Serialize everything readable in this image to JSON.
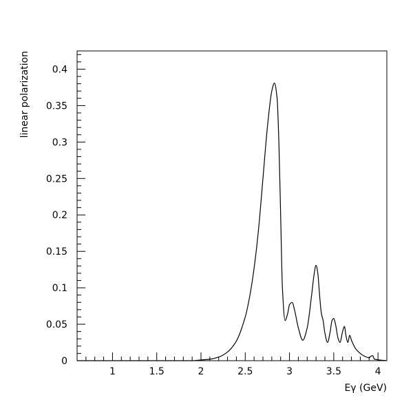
{
  "chart_data": {
    "type": "line",
    "title": "",
    "xlabel": "Eγ (GeV)",
    "ylabel": "linear polarization",
    "xlim": [
      0.6,
      4.1
    ],
    "ylim": [
      0,
      0.425
    ],
    "x_major_ticks": [
      1,
      1.5,
      2,
      2.5,
      3,
      3.5,
      4
    ],
    "x_tick_labels": [
      "1",
      "1.5",
      "2",
      "2.5",
      "3",
      "3.5",
      "4"
    ],
    "x_minor_step": 0.1,
    "y_major_ticks": [
      0,
      0.05,
      0.1,
      0.15,
      0.2,
      0.25,
      0.3,
      0.35,
      0.4
    ],
    "y_tick_labels": [
      "0",
      "0.05",
      "0.1",
      "0.15",
      "0.2",
      "0.25",
      "0.3",
      "0.35",
      "0.4"
    ],
    "y_minor_step": 0.01,
    "grid": false,
    "legend": "none",
    "colors": {
      "line": "#000000",
      "axes": "#000000",
      "background": "#ffffff"
    },
    "series": [
      {
        "x": [
          0.6,
          1.9,
          2.0,
          2.1,
          2.2,
          2.3,
          2.4,
          2.5,
          2.55,
          2.6,
          2.65,
          2.7,
          2.75,
          2.8,
          2.83,
          2.86,
          2.88,
          2.9,
          2.92,
          2.95,
          2.98,
          3.0,
          3.03,
          3.06,
          3.1,
          3.15,
          3.2,
          3.25,
          3.28,
          3.3,
          3.32,
          3.34,
          3.36,
          3.38,
          3.4,
          3.43,
          3.46,
          3.48,
          3.5,
          3.52,
          3.55,
          3.57,
          3.6,
          3.62,
          3.64,
          3.66,
          3.68,
          3.7,
          3.75,
          3.8,
          3.85,
          3.9,
          3.92,
          3.94,
          3.96,
          4.1
        ],
        "y": [
          0,
          0,
          0.001,
          0.002,
          0.005,
          0.012,
          0.027,
          0.06,
          0.088,
          0.127,
          0.18,
          0.25,
          0.32,
          0.37,
          0.381,
          0.36,
          0.3,
          0.2,
          0.1,
          0.055,
          0.065,
          0.077,
          0.08,
          0.068,
          0.045,
          0.028,
          0.045,
          0.09,
          0.12,
          0.131,
          0.12,
          0.09,
          0.065,
          0.055,
          0.038,
          0.025,
          0.04,
          0.055,
          0.058,
          0.05,
          0.03,
          0.025,
          0.04,
          0.047,
          0.033,
          0.025,
          0.035,
          0.028,
          0.016,
          0.01,
          0.006,
          0.004,
          0.006,
          0.007,
          0.002,
          0
        ]
      }
    ]
  }
}
